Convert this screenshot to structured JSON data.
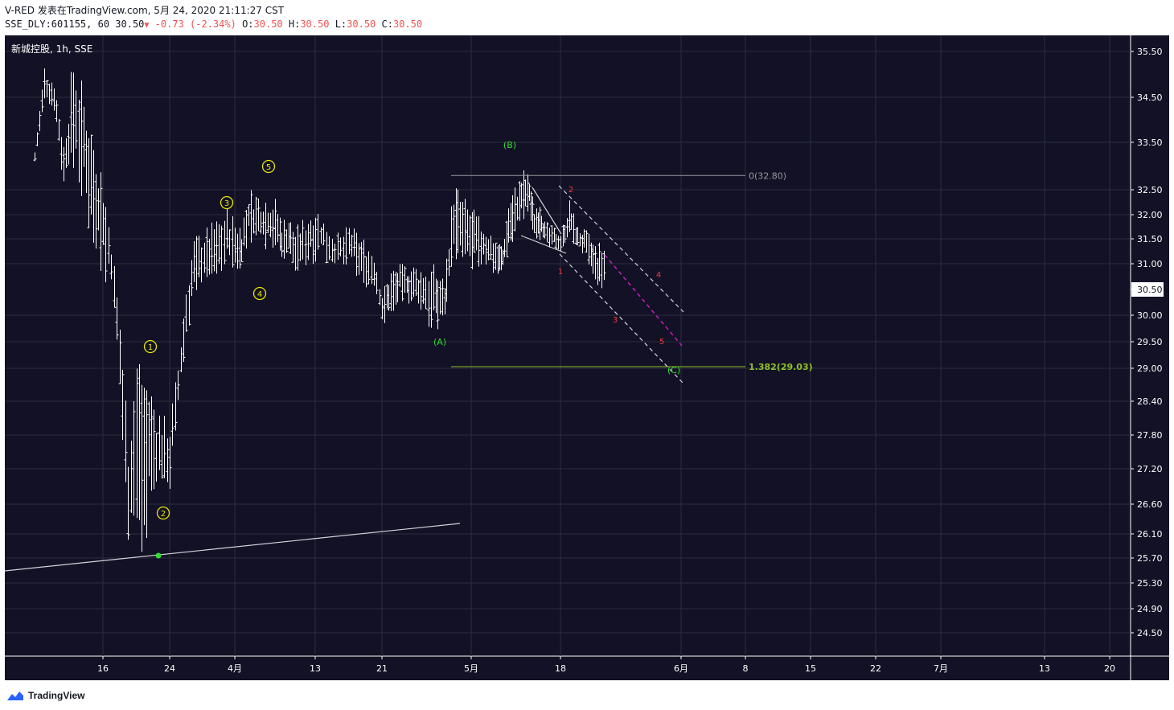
{
  "header": {
    "user": "V-RED",
    "published": "发表在TradingView.com, 5月 24, 2020 21:11:27 CST",
    "symbol": "SSE_DLY:601155, 60",
    "last": "30.50",
    "arrow": "▼",
    "change": "-0.73 (-2.34%)",
    "o_label": "O:",
    "o_value": "30.50",
    "h_label": "H:",
    "h_value": "30.50",
    "l_label": "L:",
    "l_value": "30.50",
    "c_label": "C:",
    "c_value": "30.50"
  },
  "chart_title": "新城控股, 1h, SSE",
  "footer": {
    "brand": "TradingView"
  },
  "colors": {
    "background": "#131125",
    "grid": "#2a2e3e",
    "bars": "#ffffff",
    "text_axis": "#ffffff",
    "wave_yellow": "#e6e600",
    "wave_green": "#33dd33",
    "wave_red": "#ef3b3b",
    "fib_gray": "#9598a1",
    "fib_green": "#8fbf26",
    "channel_magenta": "#c21fc2",
    "price_label_bg": "#ffffff"
  },
  "chart_data": {
    "type": "ohlc",
    "timeframe": "1h",
    "y_ticks": [
      35.5,
      34.5,
      33.5,
      32.5,
      32.0,
      31.5,
      31.0,
      30.5,
      30.0,
      29.5,
      29.0,
      28.4,
      27.8,
      27.2,
      26.6,
      26.1,
      25.7,
      25.3,
      24.9,
      24.5
    ],
    "y_tick_labels": [
      "35.50",
      "34.50",
      "33.50",
      "32.50",
      "32.00",
      "31.50",
      "31.00",
      "30.50",
      "30.00",
      "29.50",
      "29.00",
      "28.40",
      "27.80",
      "27.20",
      "26.60",
      "26.10",
      "25.70",
      "25.30",
      "24.90",
      "24.50"
    ],
    "x_ticks": [
      "16",
      "24",
      "4月",
      "13",
      "21",
      "5月",
      "18",
      "6月",
      "8",
      "15",
      "22",
      "7月",
      "13",
      "20"
    ],
    "current_price": 30.5,
    "ohlc_keypoints": [
      {
        "date": "03-09",
        "high": 33.3,
        "low": 33.1
      },
      {
        "date": "03-10",
        "high": 35.1,
        "low": 34.3
      },
      {
        "date": "03-11",
        "high": 34.8,
        "low": 34.3
      },
      {
        "date": "03-12",
        "high": 33.4,
        "low": 32.6
      },
      {
        "date": "03-13",
        "high": 35.2,
        "low": 33.2
      },
      {
        "date": "03-16",
        "high": 32.6,
        "low": 30.9
      },
      {
        "date": "03-17",
        "high": 31.4,
        "low": 30.6
      },
      {
        "date": "03-18",
        "high": 29.8,
        "low": 28.6
      },
      {
        "date": "03-19",
        "high": 27.6,
        "low": 26.2
      },
      {
        "date": "03-20",
        "high": 29.1,
        "low": 26.1
      },
      {
        "date": "03-23",
        "high": 28.0,
        "low": 27.0
      },
      {
        "date": "03-24",
        "high": 27.9,
        "low": 27.0
      },
      {
        "date": "03-25",
        "high": 29.0,
        "low": 28.3
      },
      {
        "date": "03-26",
        "high": 30.5,
        "low": 29.5
      },
      {
        "date": "03-27",
        "high": 31.4,
        "low": 30.6
      },
      {
        "date": "03-30",
        "high": 31.8,
        "low": 30.9
      },
      {
        "date": "03-31",
        "high": 32.0,
        "low": 31.2
      },
      {
        "date": "04-01",
        "high": 31.8,
        "low": 30.8
      },
      {
        "date": "04-02",
        "high": 31.7,
        "low": 31.0
      },
      {
        "date": "04-03",
        "high": 32.4,
        "low": 31.5
      },
      {
        "date": "04-07",
        "high": 32.2,
        "low": 31.4
      },
      {
        "date": "04-08",
        "high": 31.8,
        "low": 31.1
      },
      {
        "date": "04-09",
        "high": 31.9,
        "low": 31.2
      },
      {
        "date": "04-10",
        "high": 31.6,
        "low": 30.9
      },
      {
        "date": "04-13",
        "high": 32.1,
        "low": 31.2
      },
      {
        "date": "04-14",
        "high": 31.8,
        "low": 31.2
      },
      {
        "date": "04-15",
        "high": 31.6,
        "low": 31.0
      },
      {
        "date": "04-16",
        "high": 31.5,
        "low": 31.0
      },
      {
        "date": "04-17",
        "high": 31.7,
        "low": 31.1
      },
      {
        "date": "04-20",
        "high": 31.2,
        "low": 30.4
      },
      {
        "date": "04-21",
        "high": 30.4,
        "low": 29.9
      },
      {
        "date": "04-22",
        "high": 30.8,
        "low": 30.1
      },
      {
        "date": "04-23",
        "high": 30.9,
        "low": 30.4
      },
      {
        "date": "04-24",
        "high": 30.9,
        "low": 30.3
      },
      {
        "date": "04-27",
        "high": 30.8,
        "low": 29.8
      },
      {
        "date": "04-28",
        "high": 30.6,
        "low": 30.1
      },
      {
        "date": "04-29",
        "high": 32.5,
        "low": 31.2
      },
      {
        "date": "04-30",
        "high": 32.2,
        "low": 31.1
      },
      {
        "date": "05-06",
        "high": 31.4,
        "low": 30.9
      },
      {
        "date": "05-07",
        "high": 31.3,
        "low": 30.9
      },
      {
        "date": "05-08",
        "high": 32.2,
        "low": 31.4
      },
      {
        "date": "05-11",
        "high": 32.8,
        "low": 32.0
      },
      {
        "date": "05-12",
        "high": 32.7,
        "low": 32.1
      },
      {
        "date": "05-13",
        "high": 32.1,
        "low": 31.6
      },
      {
        "date": "05-14",
        "high": 32.3,
        "low": 31.6
      },
      {
        "date": "05-15",
        "high": 31.8,
        "low": 31.4
      },
      {
        "date": "05-18",
        "high": 31.6,
        "low": 31.3
      },
      {
        "date": "05-19",
        "high": 32.2,
        "low": 31.6
      },
      {
        "date": "05-20",
        "high": 31.7,
        "low": 31.3
      },
      {
        "date": "05-21",
        "high": 31.6,
        "low": 31.2
      },
      {
        "date": "05-22",
        "high": 31.3,
        "low": 30.5
      }
    ],
    "annotations": {
      "fib": [
        {
          "level": "0",
          "price": 32.8,
          "label": "0(32.80)"
        },
        {
          "level": "1.382",
          "price": 29.03,
          "label": "1.382(29.03)"
        }
      ],
      "waves_yellow": [
        "1",
        "2",
        "3",
        "4",
        "5"
      ],
      "waves_green": [
        "(A)",
        "(B)",
        "(C)"
      ],
      "waves_red": [
        "1",
        "2",
        "3",
        "4",
        "5"
      ]
    }
  }
}
